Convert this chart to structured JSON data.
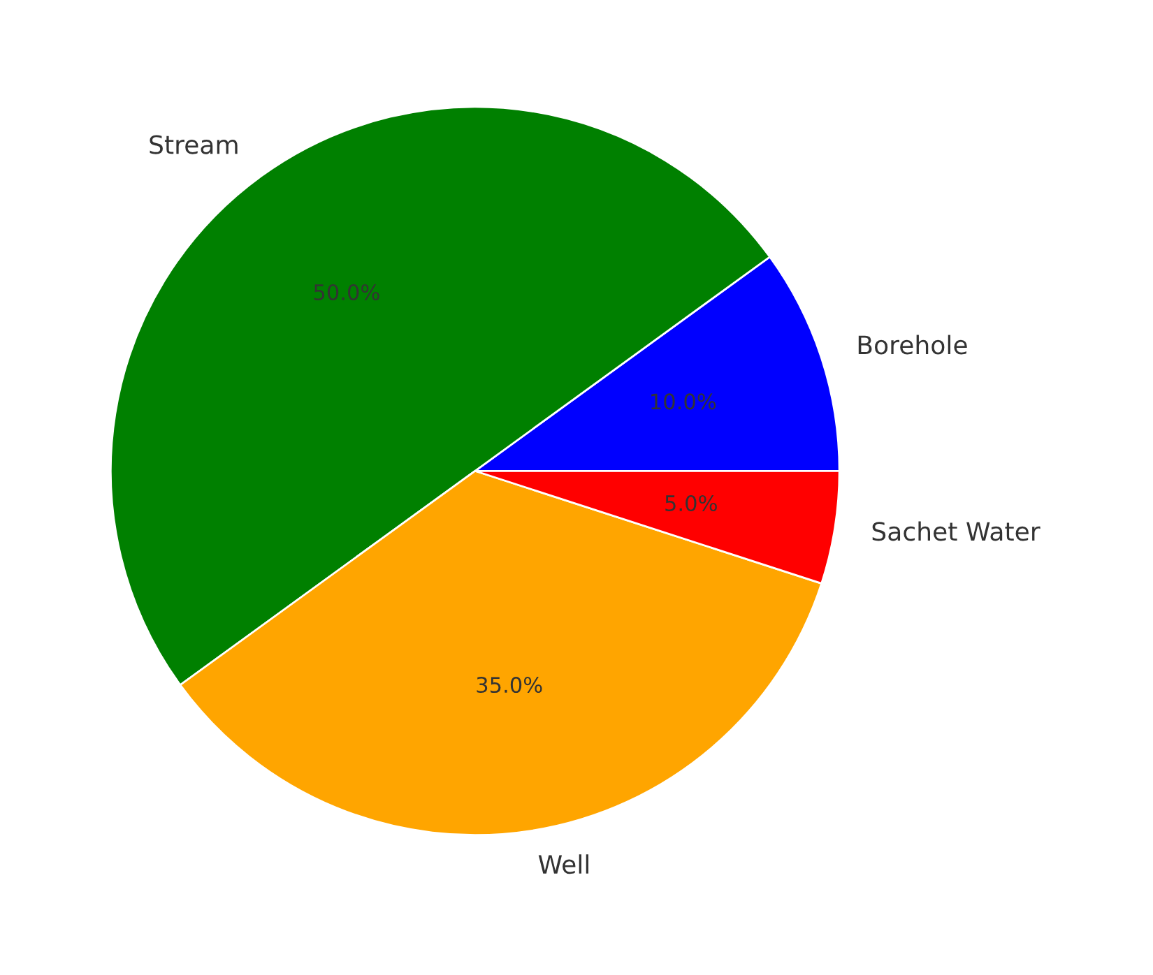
{
  "chart_data": {
    "type": "pie",
    "categories": [
      "Borehole",
      "Stream",
      "Well",
      "Sachet Water"
    ],
    "values": [
      10,
      50,
      35,
      5
    ],
    "colors": [
      "#0000ff",
      "#008000",
      "#ffa500",
      "#ff0000"
    ],
    "value_labels": [
      "10.0%",
      "50.0%",
      "35.0%",
      "5.0%"
    ]
  }
}
